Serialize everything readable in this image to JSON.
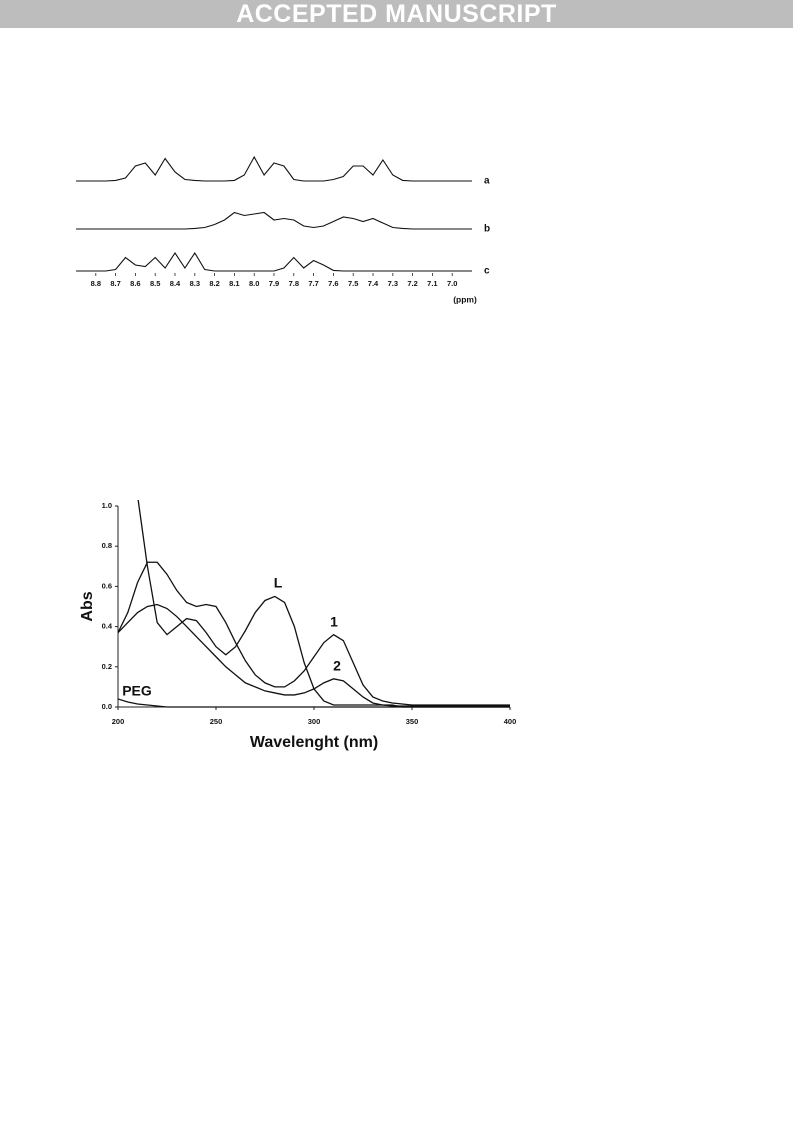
{
  "header": {
    "banner": "ACCEPTED MANUSCRIPT"
  },
  "chart_data": [
    {
      "type": "spectrum",
      "xlabel": "(ppm)",
      "x": [
        8.9,
        8.85,
        8.8,
        8.75,
        8.7,
        8.65,
        8.6,
        8.55,
        8.5,
        8.45,
        8.4,
        8.35,
        8.3,
        8.25,
        8.2,
        8.15,
        8.1,
        8.05,
        8.0,
        7.95,
        7.9,
        7.85,
        7.8,
        7.75,
        7.7,
        7.65,
        7.6,
        7.55,
        7.5,
        7.45,
        7.4,
        7.35,
        7.3,
        7.25,
        7.2,
        7.15,
        7.1,
        7.05,
        7.0,
        6.95,
        6.9
      ],
      "xlim": [
        8.9,
        6.9
      ],
      "xticks": [
        8.8,
        8.7,
        8.6,
        8.5,
        8.4,
        8.3,
        8.2,
        8.1,
        {
          "value": 8,
          "label": "8.0"
        },
        7.9,
        7.8,
        7.7,
        7.6,
        7.5,
        7.4,
        7.3,
        7.2,
        7.1,
        {
          "value": 7,
          "label": "7.0"
        }
      ],
      "series": [
        {
          "name": "a",
          "color": "#111111",
          "values": [
            0,
            0,
            0,
            0,
            0.02,
            0.1,
            0.5,
            0.6,
            0.2,
            0.75,
            0.3,
            0.05,
            0.02,
            0,
            0,
            0,
            0.02,
            0.2,
            0.8,
            0.2,
            0.6,
            0.5,
            0.05,
            0,
            0,
            0,
            0.05,
            0.15,
            0.5,
            0.5,
            0.2,
            0.7,
            0.2,
            0.02,
            0,
            0,
            0,
            0,
            0,
            0,
            0
          ]
        },
        {
          "name": "b",
          "color": "#111111",
          "values": [
            0,
            0,
            0,
            0,
            0,
            0,
            0,
            0,
            0,
            0,
            0,
            0,
            0.02,
            0.05,
            0.15,
            0.3,
            0.55,
            0.45,
            0.5,
            0.55,
            0.3,
            0.35,
            0.3,
            0.1,
            0.05,
            0.1,
            0.25,
            0.4,
            0.35,
            0.25,
            0.35,
            0.2,
            0.05,
            0.02,
            0,
            0,
            0,
            0,
            0,
            0,
            0
          ]
        },
        {
          "name": "c",
          "color": "#111111",
          "values": [
            0,
            0,
            0,
            0,
            0.05,
            0.45,
            0.2,
            0.15,
            0.45,
            0.1,
            0.6,
            0.1,
            0.6,
            0.05,
            0,
            0,
            0,
            0,
            0,
            0,
            0,
            0.1,
            0.45,
            0.1,
            0.35,
            0.2,
            0.02,
            0,
            0,
            0,
            0,
            0,
            0,
            0,
            0,
            0,
            0,
            0,
            0,
            0,
            0
          ]
        }
      ]
    },
    {
      "type": "line",
      "xlabel": "Wavelenght (nm)",
      "ylabel": "Abs",
      "x": [
        200,
        205,
        210,
        215,
        220,
        225,
        230,
        235,
        240,
        245,
        250,
        255,
        260,
        265,
        270,
        275,
        280,
        285,
        290,
        295,
        300,
        305,
        310,
        315,
        320,
        325,
        330,
        335,
        340,
        345,
        350,
        355,
        360,
        365,
        370,
        375,
        380,
        385,
        390,
        395,
        400
      ],
      "xlim": [
        200,
        400
      ],
      "ylim": [
        0,
        1
      ],
      "xticks": [
        200,
        250,
        300,
        350,
        400
      ],
      "yticks": [
        {
          "value": 0,
          "label": "0.0"
        },
        0.2,
        0.4,
        0.6,
        0.8,
        {
          "value": 1,
          "label": "1.0"
        }
      ],
      "series": [
        {
          "name": "L",
          "color": "#111111",
          "values": [
            null,
            null,
            1.05,
            0.7,
            0.42,
            0.36,
            0.4,
            0.44,
            0.43,
            0.37,
            0.3,
            0.26,
            0.3,
            0.38,
            0.47,
            0.53,
            0.55,
            0.52,
            0.4,
            0.22,
            0.09,
            0.03,
            0.01,
            0.01,
            0.01,
            0.01,
            0.01,
            0.01,
            0.01,
            0,
            0,
            0,
            0,
            0,
            0,
            0,
            0,
            0,
            0,
            0,
            0
          ]
        },
        {
          "name": "1",
          "color": "#111111",
          "values": [
            0.37,
            0.47,
            0.62,
            0.72,
            0.72,
            0.66,
            0.58,
            0.52,
            0.5,
            0.51,
            0.5,
            0.42,
            0.32,
            0.23,
            0.16,
            0.12,
            0.1,
            0.1,
            0.13,
            0.18,
            0.25,
            0.32,
            0.36,
            0.33,
            0.22,
            0.11,
            0.05,
            0.03,
            0.02,
            0.015,
            0.01,
            0.01,
            0.01,
            0.01,
            0.01,
            0.01,
            0.01,
            0.01,
            0.01,
            0.01,
            0.01
          ]
        },
        {
          "name": "2",
          "color": "#111111",
          "values": [
            0.37,
            0.42,
            0.47,
            0.5,
            0.51,
            0.49,
            0.45,
            0.4,
            0.35,
            0.3,
            0.25,
            0.2,
            0.16,
            0.12,
            0.1,
            0.08,
            0.07,
            0.06,
            0.06,
            0.07,
            0.09,
            0.12,
            0.14,
            0.13,
            0.09,
            0.05,
            0.02,
            0.01,
            0.005,
            0.005,
            0.005,
            0.005,
            0.005,
            0.005,
            0.005,
            0.005,
            0.005,
            0.005,
            0.005,
            0.005,
            0.005
          ]
        },
        {
          "name": "PEG",
          "color": "#111111",
          "values": [
            0.04,
            0.025,
            0.015,
            0.01,
            0.005,
            0,
            0,
            0,
            0,
            0,
            0,
            0,
            0,
            0,
            0,
            0,
            0,
            0,
            0,
            0,
            0,
            0,
            0,
            0,
            0,
            0,
            0,
            0,
            0,
            0,
            0,
            0,
            0,
            0,
            0,
            0,
            0,
            0,
            0,
            0,
            0
          ]
        }
      ]
    }
  ]
}
